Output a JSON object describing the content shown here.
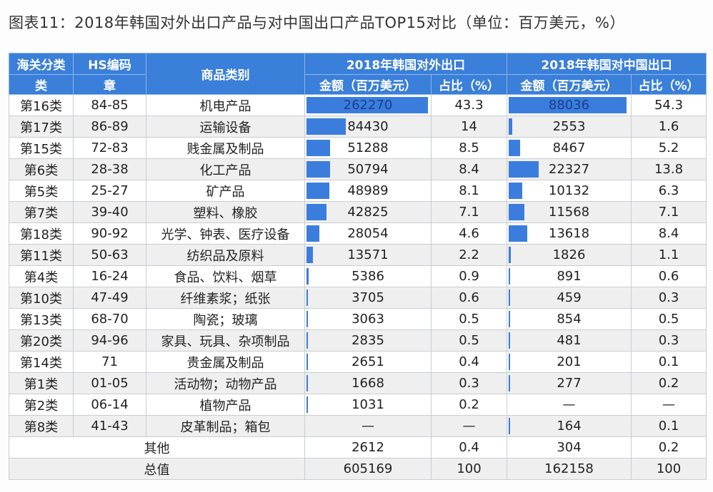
{
  "title": "图表11：2018年韩国对外出口产品与对中国出口产品TOP15对比（单位：百万美元，%）",
  "header": {
    "customs_class": "海关分类",
    "hs_code": "HS编码",
    "category": "商品类别",
    "group_world": "2018年韩国对外出口",
    "group_china": "2018年韩国对中国出口",
    "class_sub": "类",
    "chapter_sub": "章",
    "amount": "金额（百万美元）",
    "share": "占比（%）",
    "amount2": "金额（百万美元）",
    "share2": "占比（%）"
  },
  "colors": {
    "header_bg": "#3a7fd9",
    "bar": "#3b7ddd",
    "row_alt": "#efefef"
  },
  "rows": [
    {
      "cls": "第16类",
      "hs": "84-85",
      "name": "机电产品",
      "world_amt": "262270",
      "world_share": "43.3",
      "china_amt": "88036",
      "china_share": "54.3"
    },
    {
      "cls": "第17类",
      "hs": "86-89",
      "name": "运输设备",
      "world_amt": "84430",
      "world_share": "14",
      "china_amt": "2553",
      "china_share": "1.6"
    },
    {
      "cls": "第15类",
      "hs": "72-83",
      "name": "贱金属及制品",
      "world_amt": "51288",
      "world_share": "8.5",
      "china_amt": "8467",
      "china_share": "5.2"
    },
    {
      "cls": "第6类",
      "hs": "28-38",
      "name": "化工产品",
      "world_amt": "50794",
      "world_share": "8.4",
      "china_amt": "22327",
      "china_share": "13.8"
    },
    {
      "cls": "第5类",
      "hs": "25-27",
      "name": "矿产品",
      "world_amt": "48989",
      "world_share": "8.1",
      "china_amt": "10132",
      "china_share": "6.3"
    },
    {
      "cls": "第7类",
      "hs": "39-40",
      "name": "塑料、橡胶",
      "world_amt": "42825",
      "world_share": "7.1",
      "china_amt": "11568",
      "china_share": "7.1"
    },
    {
      "cls": "第18类",
      "hs": "90-92",
      "name": "光学、钟表、医疗设备",
      "world_amt": "28054",
      "world_share": "4.6",
      "china_amt": "13618",
      "china_share": "8.4"
    },
    {
      "cls": "第11类",
      "hs": "50-63",
      "name": "纺织品及原料",
      "world_amt": "13571",
      "world_share": "2.2",
      "china_amt": "1826",
      "china_share": "1.1"
    },
    {
      "cls": "第4类",
      "hs": "16-24",
      "name": "食品、饮料、烟草",
      "world_amt": "5386",
      "world_share": "0.9",
      "china_amt": "891",
      "china_share": "0.6"
    },
    {
      "cls": "第10类",
      "hs": "47-49",
      "name": "纤维素浆；纸张",
      "world_amt": "3705",
      "world_share": "0.6",
      "china_amt": "459",
      "china_share": "0.3"
    },
    {
      "cls": "第13类",
      "hs": "68-70",
      "name": "陶瓷；玻璃",
      "world_amt": "3063",
      "world_share": "0.5",
      "china_amt": "854",
      "china_share": "0.5"
    },
    {
      "cls": "第20类",
      "hs": "94-96",
      "name": "家具、玩具、杂项制品",
      "world_amt": "2835",
      "world_share": "0.5",
      "china_amt": "481",
      "china_share": "0.3"
    },
    {
      "cls": "第14类",
      "hs": "71",
      "name": "贵金属及制品",
      "world_amt": "2651",
      "world_share": "0.4",
      "china_amt": "201",
      "china_share": "0.1"
    },
    {
      "cls": "第1类",
      "hs": "01-05",
      "name": "活动物；动物产品",
      "world_amt": "1668",
      "world_share": "0.3",
      "china_amt": "277",
      "china_share": "0.2"
    },
    {
      "cls": "第2类",
      "hs": "06-14",
      "name": "植物产品",
      "world_amt": "1031",
      "world_share": "0.2",
      "china_amt": "—",
      "china_share": "—"
    },
    {
      "cls": "第8类",
      "hs": "41-43",
      "name": "皮革制品；箱包",
      "world_amt": "—",
      "world_share": "—",
      "china_amt": "164",
      "china_share": "0.1"
    }
  ],
  "others": {
    "label": "其他",
    "world_amt": "2612",
    "world_share": "0.4",
    "china_amt": "304",
    "china_share": "0.2"
  },
  "total": {
    "label": "总值",
    "world_amt": "605169",
    "world_share": "100",
    "china_amt": "162158",
    "china_share": "100"
  }
}
